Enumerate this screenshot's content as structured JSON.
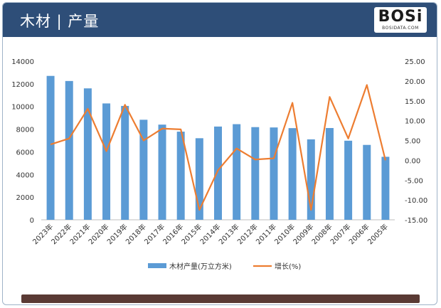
{
  "header": {
    "title": "木材 | 产量"
  },
  "logo": {
    "text": "BOSi",
    "sub": "BOSIDATA.COM"
  },
  "colors": {
    "bar": "#5b9bd5",
    "line": "#ed7d31",
    "header": "#2e4e78"
  },
  "chart_data": {
    "type": "bar",
    "categories": [
      "2023年",
      "2022年",
      "2021年",
      "2020年",
      "2019年",
      "2018年",
      "2017年",
      "2016年",
      "2015年",
      "2014年",
      "2013年",
      "2012年",
      "2011年",
      "2010年",
      "2009年",
      "2008年",
      "2007年",
      "2006年",
      "2005年"
    ],
    "series": [
      {
        "name": "木材产量(万立方米)",
        "type": "bar",
        "axis": "left",
        "values": [
          12700,
          12250,
          11600,
          10270,
          10050,
          8830,
          8400,
          7780,
          7200,
          8230,
          8440,
          8180,
          8150,
          8090,
          7100,
          8100,
          6980,
          6610,
          5560
        ]
      },
      {
        "name": "增长(%)",
        "type": "line",
        "axis": "right",
        "values": [
          4.0,
          5.5,
          13.0,
          2.3,
          14.0,
          5.0,
          8.0,
          7.8,
          -12.5,
          -2.5,
          3.0,
          0.2,
          0.5,
          14.5,
          -12.5,
          16.0,
          5.5,
          19.0,
          0.0
        ]
      }
    ],
    "y_left": {
      "min": 0,
      "max": 14000,
      "step": 2000,
      "ticks": [
        "0",
        "2000",
        "4000",
        "6000",
        "8000",
        "10000",
        "12000",
        "14000"
      ]
    },
    "y_right": {
      "min": -15,
      "max": 25,
      "step": 5,
      "ticks": [
        "-15.00",
        "-10.00",
        "-5.00",
        "0.00",
        "5.00",
        "10.00",
        "15.00",
        "20.00",
        "25.00"
      ]
    },
    "grid": false,
    "legend_position": "bottom"
  }
}
